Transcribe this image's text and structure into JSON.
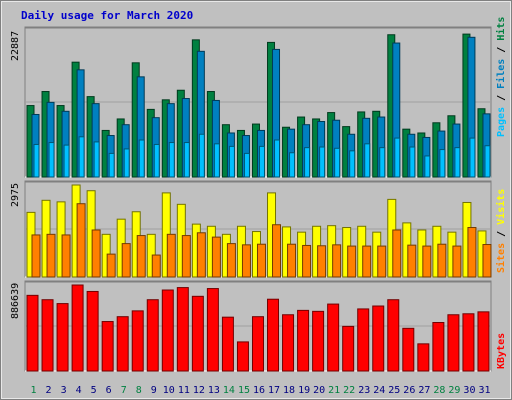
{
  "chart_data": [
    {
      "type": "bar",
      "title": "Daily usage for March 2020",
      "panel": "hits-files-pages",
      "ymax_label": "22887",
      "legend": [
        "Pages",
        "Files",
        "Hits"
      ],
      "legend_colors": {
        "Pages": "#00c0ff",
        "Files": "#0000ff",
        "Hits": "#006060"
      },
      "categories": [
        "1",
        "2",
        "3",
        "4",
        "5",
        "6",
        "7",
        "8",
        "9",
        "10",
        "11",
        "12",
        "13",
        "14",
        "15",
        "16",
        "17",
        "18",
        "19",
        "20",
        "21",
        "22",
        "23",
        "24",
        "25",
        "26",
        "27",
        "28",
        "29",
        "30",
        "31"
      ],
      "series": [
        {
          "name": "Hits",
          "values": [
            11200,
            13400,
            11200,
            18000,
            12600,
            7300,
            9100,
            17900,
            10600,
            12100,
            13600,
            21500,
            13400,
            8200,
            7300,
            8300,
            21100,
            7800,
            9400,
            9100,
            10100,
            7900,
            10200,
            10300,
            22300,
            7500,
            6900,
            8500,
            9600,
            22400,
            10700
          ]
        },
        {
          "name": "Files",
          "values": [
            9800,
            11700,
            10300,
            16800,
            11500,
            6500,
            8200,
            15700,
            9300,
            11500,
            12300,
            19700,
            12000,
            6900,
            6500,
            7300,
            20000,
            7500,
            8200,
            8700,
            8900,
            6700,
            9200,
            9400,
            21000,
            6700,
            6200,
            7200,
            8300,
            21900,
            9900
          ]
        },
        {
          "name": "Pages",
          "values": [
            5100,
            5400,
            5000,
            6300,
            5500,
            3700,
            4400,
            5800,
            5100,
            5400,
            5400,
            6700,
            5200,
            4800,
            3700,
            4800,
            5800,
            3800,
            4600,
            4700,
            4500,
            4100,
            5200,
            4600,
            6100,
            4700,
            3300,
            4300,
            4600,
            6100,
            4900
          ]
        }
      ]
    },
    {
      "type": "bar",
      "panel": "visits-sites",
      "ymax_label": "2975",
      "legend": [
        "Sites",
        "Visits"
      ],
      "legend_colors": {
        "Sites": "#ff8000",
        "Visits": "#ffff00"
      },
      "categories": [
        "1",
        "2",
        "3",
        "4",
        "5",
        "6",
        "7",
        "8",
        "9",
        "10",
        "11",
        "12",
        "13",
        "14",
        "15",
        "16",
        "17",
        "18",
        "19",
        "20",
        "21",
        "22",
        "23",
        "24",
        "25",
        "26",
        "27",
        "28",
        "29",
        "30",
        "31"
      ],
      "series": [
        {
          "name": "Visits",
          "values": [
            2090,
            2480,
            2430,
            2975,
            2790,
            1380,
            1870,
            2110,
            1380,
            2720,
            2350,
            1710,
            1640,
            1380,
            1640,
            1470,
            2720,
            1620,
            1450,
            1640,
            1660,
            1600,
            1640,
            1450,
            2510,
            1750,
            1520,
            1640,
            1450,
            2410,
            1490
          ]
        },
        {
          "name": "Sites",
          "values": [
            1360,
            1380,
            1360,
            2370,
            1520,
            740,
            1080,
            1340,
            710,
            1380,
            1340,
            1430,
            1290,
            1080,
            1040,
            1060,
            1690,
            1060,
            1020,
            1010,
            1040,
            1000,
            1000,
            1000,
            1520,
            1030,
            1000,
            1060,
            1000,
            1600,
            1050
          ]
        }
      ]
    },
    {
      "type": "bar",
      "panel": "kbytes",
      "ymax_label": "886639",
      "legend": [
        "KBytes"
      ],
      "legend_colors": {
        "KBytes": "#ff0000"
      },
      "categories": [
        "1",
        "2",
        "3",
        "4",
        "5",
        "6",
        "7",
        "8",
        "9",
        "10",
        "11",
        "12",
        "13",
        "14",
        "15",
        "16",
        "17",
        "18",
        "19",
        "20",
        "21",
        "22",
        "23",
        "24",
        "25",
        "26",
        "27",
        "28",
        "29",
        "30",
        "31"
      ],
      "series": [
        {
          "name": "KBytes",
          "values": [
            780000,
            735000,
            695000,
            886639,
            820000,
            510000,
            560000,
            620000,
            735000,
            835000,
            860000,
            770000,
            850000,
            555000,
            300000,
            560000,
            740000,
            580000,
            625000,
            615000,
            690000,
            460000,
            640000,
            670000,
            735000,
            440000,
            280000,
            500000,
            580000,
            590000,
            610000
          ]
        }
      ]
    }
  ],
  "colors": {
    "hits": "#008040",
    "files": "#0080c0",
    "pages": "#00c0ff",
    "visits": "#ffff00",
    "sites": "#ff8000",
    "kbytes": "#ff0000",
    "title": "#0000cc",
    "weekend": "#008040",
    "weekday": "#000080"
  },
  "weekend_days": [
    "1",
    "7",
    "8",
    "14",
    "15",
    "21",
    "22",
    "28",
    "29"
  ]
}
